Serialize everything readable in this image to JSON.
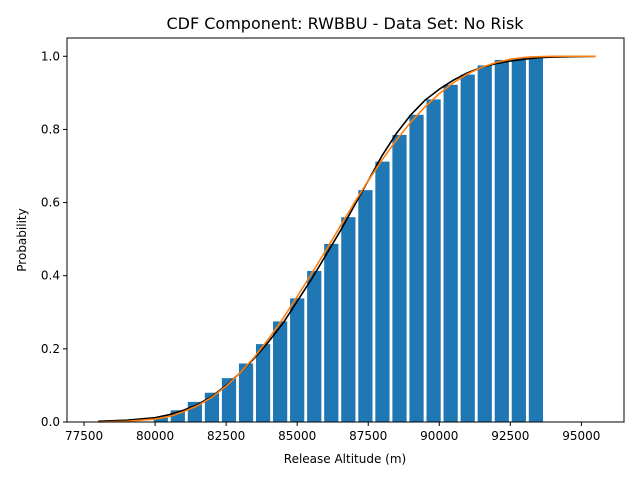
{
  "chart_data": {
    "type": "bar",
    "title": "CDF Component: RWBBU - Data Set: No Risk",
    "xlabel": "Release Altitude (m)",
    "ylabel": "Probability",
    "xlim": [
      76900,
      96500
    ],
    "ylim": [
      0,
      1.05
    ],
    "x_ticks": [
      77500,
      80000,
      82500,
      85000,
      87500,
      90000,
      92500,
      95000
    ],
    "y_ticks": [
      0.0,
      0.2,
      0.4,
      0.6,
      0.8,
      1.0
    ],
    "x_tick_labels": [
      "77500",
      "80000",
      "82500",
      "85000",
      "87500",
      "90000",
      "92500",
      "95000"
    ],
    "y_tick_labels": [
      "0.0",
      "0.2",
      "0.4",
      "0.6",
      "0.8",
      "1.0"
    ],
    "bar_width": 500,
    "bars": {
      "color": "#1f77b4",
      "x": [
        80200,
        80800,
        81400,
        82000,
        82600,
        83200,
        83800,
        84400,
        85000,
        85600,
        86200,
        86800,
        87400,
        88000,
        88600,
        89200,
        89800,
        90400,
        91000,
        91600,
        92200,
        92800,
        93400
      ],
      "values": [
        0.012,
        0.032,
        0.055,
        0.08,
        0.12,
        0.16,
        0.213,
        0.275,
        0.338,
        0.413,
        0.487,
        0.56,
        0.634,
        0.712,
        0.785,
        0.84,
        0.882,
        0.922,
        0.95,
        0.975,
        0.99,
        0.995,
        1.0
      ]
    },
    "series": [
      {
        "color": "#000000",
        "x": [
          78000,
          79000,
          80000,
          80500,
          81000,
          81500,
          82000,
          82500,
          83000,
          83500,
          84000,
          84500,
          85000,
          85500,
          86000,
          86500,
          87000,
          87500,
          88000,
          88500,
          89000,
          89500,
          90000,
          90500,
          91000,
          91500,
          92000,
          92500,
          93000,
          93500,
          94000,
          95500
        ],
        "values": [
          0.002,
          0.005,
          0.012,
          0.02,
          0.032,
          0.048,
          0.07,
          0.1,
          0.135,
          0.175,
          0.22,
          0.27,
          0.33,
          0.39,
          0.455,
          0.52,
          0.59,
          0.66,
          0.73,
          0.79,
          0.84,
          0.88,
          0.91,
          0.935,
          0.955,
          0.97,
          0.98,
          0.987,
          0.992,
          0.996,
          0.998,
          1.0
        ]
      },
      {
        "color": "#ff7f0e",
        "x": [
          78000,
          79000,
          80000,
          80500,
          81000,
          81500,
          82000,
          82500,
          83000,
          83500,
          84000,
          84500,
          85000,
          85500,
          86000,
          86500,
          87000,
          87500,
          88000,
          88500,
          89000,
          89500,
          90000,
          90500,
          91000,
          91500,
          92000,
          92500,
          93000,
          93500,
          94000,
          95500
        ],
        "values": [
          0.0,
          0.002,
          0.008,
          0.015,
          0.028,
          0.045,
          0.068,
          0.098,
          0.135,
          0.178,
          0.228,
          0.283,
          0.343,
          0.405,
          0.468,
          0.533,
          0.598,
          0.66,
          0.718,
          0.772,
          0.82,
          0.862,
          0.898,
          0.928,
          0.952,
          0.97,
          0.983,
          0.992,
          0.997,
          0.999,
          1.0,
          1.0
        ]
      }
    ]
  }
}
